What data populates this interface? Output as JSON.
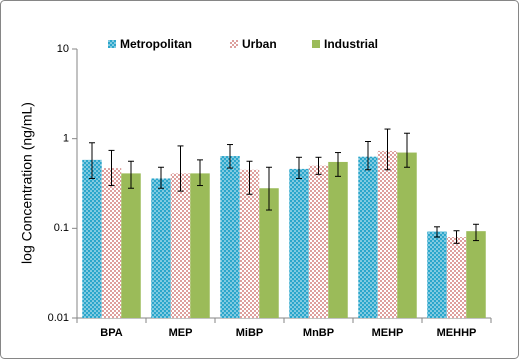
{
  "chart_data": {
    "type": "bar",
    "y_label": "log Concentration (ng/mL)",
    "categories": [
      "BPA",
      "MEP",
      "MiBP",
      "MnBP",
      "MEHP",
      "MEHHP"
    ],
    "series": [
      {
        "name": "Metropolitan",
        "color": "#2ba6cb",
        "values": [
          0.58,
          0.36,
          0.64,
          0.46,
          0.63,
          0.092
        ],
        "errors": [
          [
            0.22,
            0.32
          ],
          [
            0.08,
            0.12
          ],
          [
            0.17,
            0.22
          ],
          [
            0.1,
            0.16
          ],
          [
            0.18,
            0.3
          ],
          [
            0.012,
            0.012
          ]
        ]
      },
      {
        "name": "Urban",
        "color": "#c0504d",
        "values": [
          0.47,
          0.41,
          0.45,
          0.5,
          0.73,
          0.08
        ],
        "errors": [
          [
            0.17,
            0.27
          ],
          [
            0.15,
            0.42
          ],
          [
            0.21,
            0.11
          ],
          [
            0.1,
            0.12
          ],
          [
            0.28,
            0.55
          ],
          [
            0.012,
            0.014
          ]
        ]
      },
      {
        "name": "Industrial",
        "color": "#9bbb59",
        "values": [
          0.41,
          0.41,
          0.28,
          0.55,
          0.7,
          0.093
        ],
        "errors": [
          [
            0.13,
            0.15
          ],
          [
            0.11,
            0.17
          ],
          [
            0.12,
            0.2
          ],
          [
            0.17,
            0.15
          ],
          [
            0.22,
            0.45
          ],
          [
            0.02,
            0.018
          ]
        ]
      }
    ],
    "ylim": [
      0.01,
      10
    ],
    "yticks": [
      0.01,
      0.1,
      1,
      10
    ],
    "log_y": true,
    "grid": false,
    "legend": "top"
  }
}
